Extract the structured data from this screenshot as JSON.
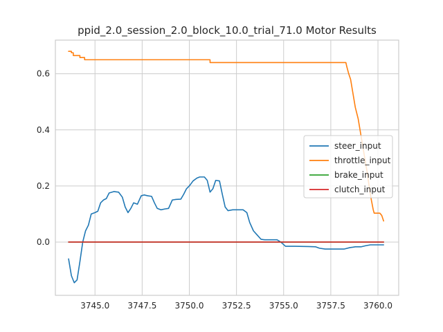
{
  "chart_data": {
    "type": "line",
    "title": "ppid_2.0_session_2.0_block_10.0_trial_71.0 Motor Results",
    "xlabel": "",
    "ylabel": "",
    "xlim": [
      3742.9,
      3761.1
    ],
    "ylim": [
      -0.19,
      0.72
    ],
    "xticks": [
      3745.0,
      3747.5,
      3750.0,
      3752.5,
      3755.0,
      3757.5,
      3760.0
    ],
    "xtick_labels": [
      "3745.0",
      "3747.5",
      "3750.0",
      "3752.5",
      "3755.0",
      "3757.5",
      "3760.0"
    ],
    "yticks": [
      0.0,
      0.2,
      0.4,
      0.6
    ],
    "ytick_labels": [
      "0.0",
      "0.2",
      "0.4",
      "0.6"
    ],
    "grid": true,
    "legend_position": "center-right",
    "series": [
      {
        "name": "steer_input",
        "color": "#1f77b4",
        "points": [
          [
            3743.6,
            -0.06
          ],
          [
            3743.75,
            -0.12
          ],
          [
            3743.9,
            -0.145
          ],
          [
            3744.05,
            -0.135
          ],
          [
            3744.2,
            -0.07
          ],
          [
            3744.35,
            0.0
          ],
          [
            3744.5,
            0.04
          ],
          [
            3744.65,
            0.06
          ],
          [
            3744.8,
            0.1
          ],
          [
            3745.0,
            0.105
          ],
          [
            3745.15,
            0.11
          ],
          [
            3745.3,
            0.14
          ],
          [
            3745.45,
            0.15
          ],
          [
            3745.6,
            0.155
          ],
          [
            3745.75,
            0.175
          ],
          [
            3746.0,
            0.18
          ],
          [
            3746.25,
            0.178
          ],
          [
            3746.45,
            0.16
          ],
          [
            3746.6,
            0.125
          ],
          [
            3746.75,
            0.105
          ],
          [
            3746.9,
            0.12
          ],
          [
            3747.05,
            0.14
          ],
          [
            3747.25,
            0.135
          ],
          [
            3747.45,
            0.165
          ],
          [
            3747.6,
            0.168
          ],
          [
            3747.8,
            0.165
          ],
          [
            3748.0,
            0.163
          ],
          [
            3748.15,
            0.14
          ],
          [
            3748.3,
            0.12
          ],
          [
            3748.5,
            0.115
          ],
          [
            3748.7,
            0.118
          ],
          [
            3748.9,
            0.12
          ],
          [
            3749.1,
            0.15
          ],
          [
            3749.3,
            0.152
          ],
          [
            3749.55,
            0.153
          ],
          [
            3749.7,
            0.17
          ],
          [
            3749.85,
            0.19
          ],
          [
            3750.0,
            0.2
          ],
          [
            3750.2,
            0.218
          ],
          [
            3750.4,
            0.228
          ],
          [
            3750.55,
            0.232
          ],
          [
            3750.8,
            0.232
          ],
          [
            3750.95,
            0.22
          ],
          [
            3751.1,
            0.178
          ],
          [
            3751.25,
            0.19
          ],
          [
            3751.4,
            0.22
          ],
          [
            3751.6,
            0.218
          ],
          [
            3751.75,
            0.17
          ],
          [
            3751.9,
            0.125
          ],
          [
            3752.05,
            0.112
          ],
          [
            3752.3,
            0.115
          ],
          [
            3752.6,
            0.115
          ],
          [
            3752.85,
            0.115
          ],
          [
            3753.05,
            0.105
          ],
          [
            3753.2,
            0.07
          ],
          [
            3753.4,
            0.04
          ],
          [
            3753.6,
            0.025
          ],
          [
            3753.8,
            0.01
          ],
          [
            3754.0,
            0.008
          ],
          [
            3754.3,
            0.008
          ],
          [
            3754.65,
            0.008
          ],
          [
            3754.85,
            0.0
          ],
          [
            3755.1,
            -0.015
          ],
          [
            3755.6,
            -0.015
          ],
          [
            3756.3,
            -0.016
          ],
          [
            3756.7,
            -0.017
          ],
          [
            3756.9,
            -0.022
          ],
          [
            3757.2,
            -0.025
          ],
          [
            3757.7,
            -0.025
          ],
          [
            3758.2,
            -0.025
          ],
          [
            3758.5,
            -0.02
          ],
          [
            3758.8,
            -0.017
          ],
          [
            3759.1,
            -0.017
          ],
          [
            3759.35,
            -0.013
          ],
          [
            3759.6,
            -0.01
          ],
          [
            3759.9,
            -0.01
          ],
          [
            3760.3,
            -0.01
          ]
        ]
      },
      {
        "name": "throttle_input",
        "color": "#ff7f0e",
        "points": [
          [
            3743.6,
            0.68
          ],
          [
            3743.75,
            0.68
          ],
          [
            3743.75,
            0.675
          ],
          [
            3743.85,
            0.675
          ],
          [
            3743.85,
            0.665
          ],
          [
            3744.2,
            0.665
          ],
          [
            3744.2,
            0.658
          ],
          [
            3744.45,
            0.658
          ],
          [
            3744.45,
            0.65
          ],
          [
            3751.1,
            0.65
          ],
          [
            3751.1,
            0.64
          ],
          [
            3758.3,
            0.64
          ],
          [
            3758.35,
            0.625
          ],
          [
            3758.45,
            0.6
          ],
          [
            3758.55,
            0.58
          ],
          [
            3758.65,
            0.54
          ],
          [
            3758.8,
            0.48
          ],
          [
            3758.95,
            0.44
          ],
          [
            3759.05,
            0.4
          ],
          [
            3759.15,
            0.36
          ],
          [
            3759.25,
            0.32
          ],
          [
            3759.35,
            0.28
          ],
          [
            3759.45,
            0.24
          ],
          [
            3759.55,
            0.19
          ],
          [
            3759.65,
            0.15
          ],
          [
            3759.75,
            0.115
          ],
          [
            3759.8,
            0.103
          ],
          [
            3760.1,
            0.103
          ],
          [
            3760.2,
            0.095
          ],
          [
            3760.3,
            0.075
          ]
        ]
      },
      {
        "name": "brake_input",
        "color": "#2ca02c",
        "points": [
          [
            3743.6,
            0.0
          ],
          [
            3760.3,
            0.0
          ]
        ]
      },
      {
        "name": "clutch_input",
        "color": "#d62728",
        "points": [
          [
            3743.6,
            0.0
          ],
          [
            3760.3,
            0.0
          ]
        ]
      }
    ]
  }
}
